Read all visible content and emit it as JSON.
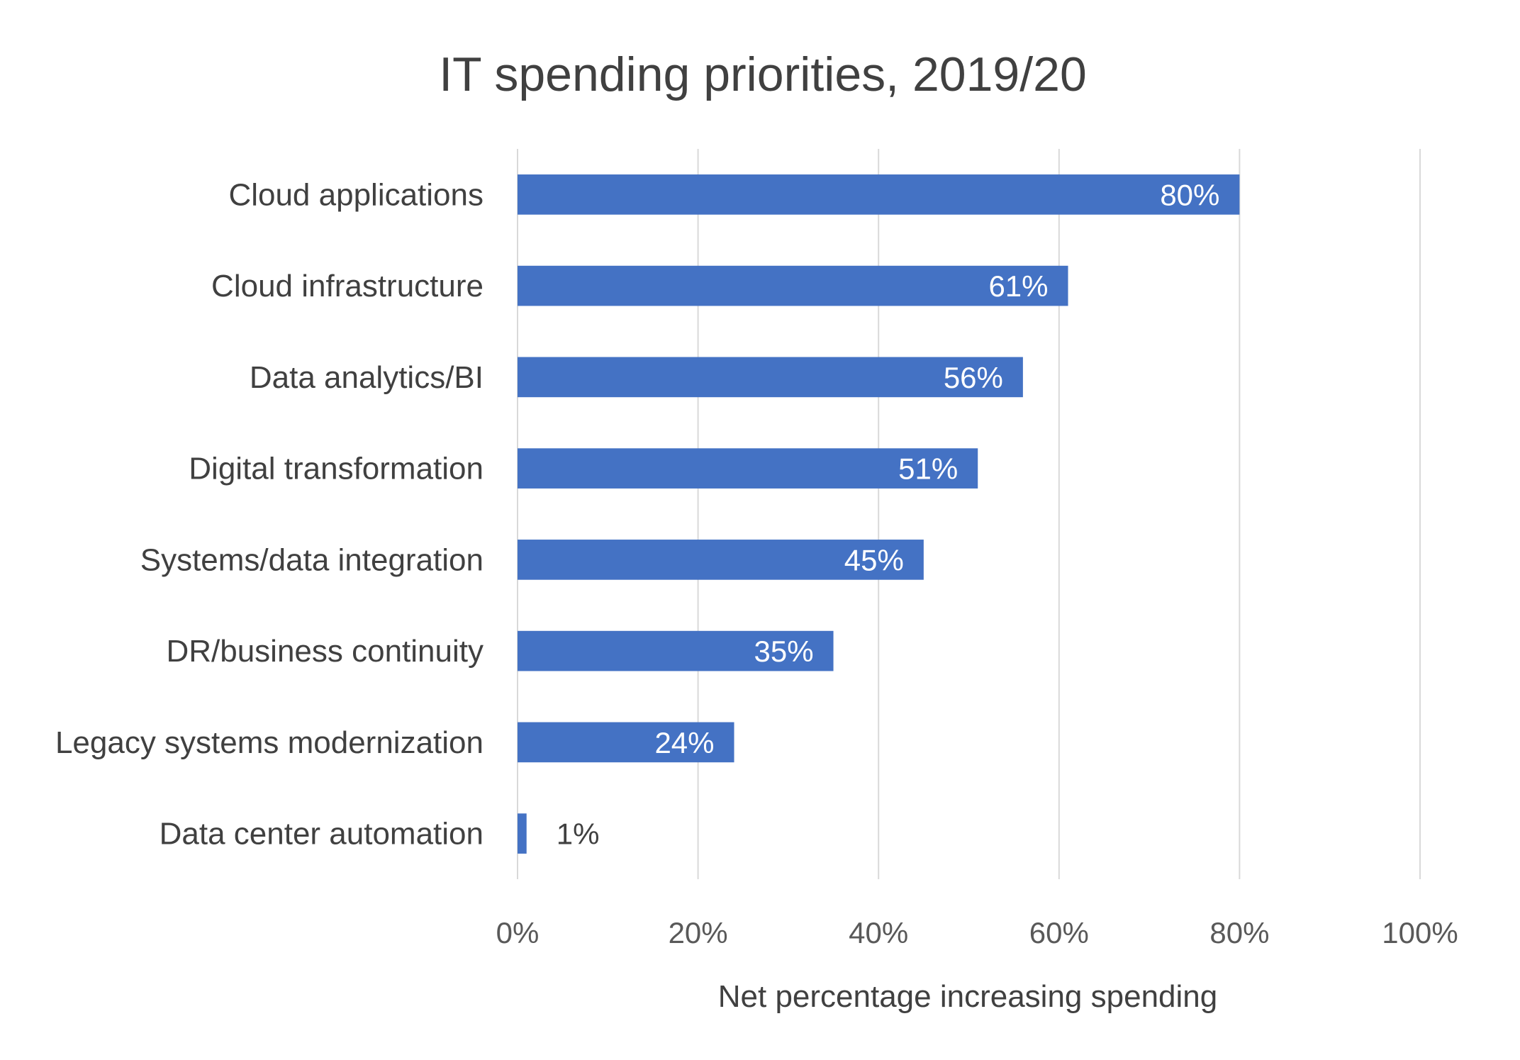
{
  "chart_data": {
    "type": "bar",
    "orientation": "horizontal",
    "title": "IT spending priorities, 2019/20",
    "xlabel": "Net percentage increasing spending",
    "ylabel": "",
    "categories": [
      "Cloud applications",
      "Cloud infrastructure",
      "Data analytics/BI",
      "Digital transformation",
      "Systems/data integration",
      "DR/business continuity",
      "Legacy systems modernization",
      "Data center automation"
    ],
    "values": [
      80,
      61,
      56,
      51,
      45,
      35,
      24,
      1
    ],
    "data_labels": [
      "80%",
      "61%",
      "56%",
      "51%",
      "45%",
      "35%",
      "24%",
      "1%"
    ],
    "xlim": [
      0,
      100
    ],
    "x_ticks": [
      "0%",
      "20%",
      "40%",
      "60%",
      "80%",
      "100%"
    ],
    "grid": "vertical",
    "bar_color": "#4472c4",
    "legend": "none"
  }
}
